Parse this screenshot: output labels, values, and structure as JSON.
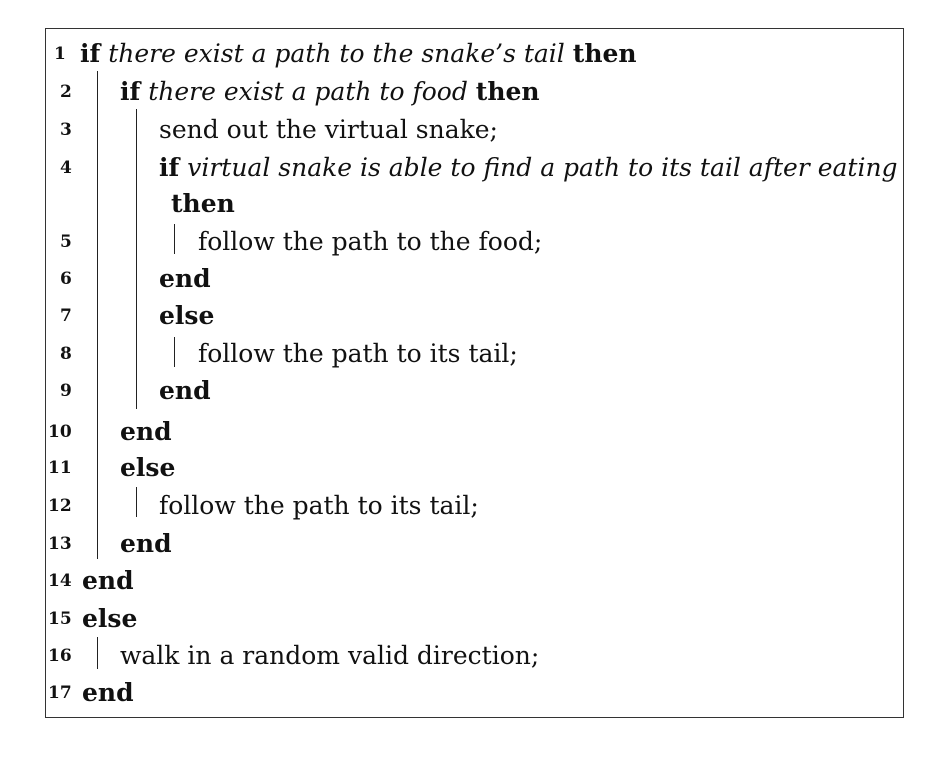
{
  "algorithm": {
    "keywords": {
      "if": "if",
      "then": "then",
      "end": "end",
      "else": "else"
    },
    "lines": [
      {
        "no": "1",
        "cond": "there exist a path to the snake’s tail"
      },
      {
        "no": "2",
        "cond": "there exist a path to food"
      },
      {
        "no": "3",
        "text": "send out the virtual snake;"
      },
      {
        "no": "4",
        "cond": "virtual snake is able to find a path to its tail after eating"
      },
      {
        "no": "5",
        "text": "follow the path to the food;"
      },
      {
        "no": "6"
      },
      {
        "no": "7"
      },
      {
        "no": "8",
        "text": "follow the path to its tail;"
      },
      {
        "no": "9"
      },
      {
        "no": "10"
      },
      {
        "no": "11"
      },
      {
        "no": "12",
        "text": "follow the path to its tail;"
      },
      {
        "no": "13"
      },
      {
        "no": "14"
      },
      {
        "no": "15"
      },
      {
        "no": "16",
        "text": "walk in a random valid direction;"
      },
      {
        "no": "17"
      }
    ]
  }
}
